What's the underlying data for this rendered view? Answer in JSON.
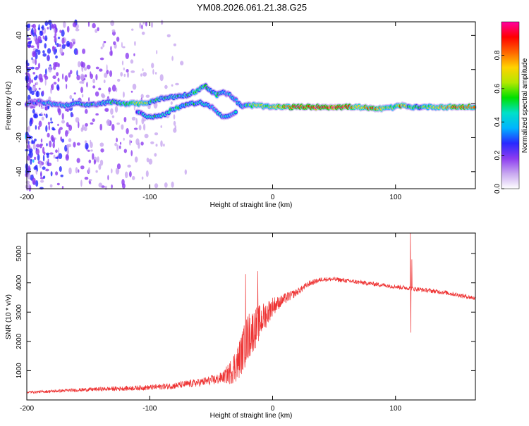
{
  "chart_data": [
    {
      "type": "heatmap",
      "title": "YM08.2026.061.21.38.G25",
      "xlabel": "Height of straight line (km)",
      "ylabel": "Frequency (Hz)",
      "xlim": [
        -200,
        165
      ],
      "ylim": [
        -50,
        48
      ],
      "xticks": [
        -200,
        -100,
        0,
        100
      ],
      "yticks": [
        40,
        20,
        0,
        -20,
        -40
      ],
      "colorbar": {
        "label": "Normalized spectral amplitude",
        "range": [
          0,
          1
        ],
        "ticks": [
          0.0,
          0.2,
          0.4,
          0.6,
          0.8
        ],
        "colors": [
          "#ffffff",
          "#c8a8f0",
          "#8c3cf0",
          "#2828ff",
          "#00b4ff",
          "#00e0c8",
          "#00e000",
          "#b4e800",
          "#ffd200",
          "#ff6400",
          "#ff0000",
          "#ff00a0"
        ]
      },
      "ridge": [
        {
          "x": -200,
          "f": 0,
          "a": 0.3
        },
        {
          "x": -190,
          "f": 1,
          "a": 0.35
        },
        {
          "x": -180,
          "f": 0,
          "a": 0.4
        },
        {
          "x": -170,
          "f": -1,
          "a": 0.38
        },
        {
          "x": -160,
          "f": 0,
          "a": 0.42
        },
        {
          "x": -150,
          "f": -1,
          "a": 0.45
        },
        {
          "x": -140,
          "f": 0,
          "a": 0.4
        },
        {
          "x": -130,
          "f": 1,
          "a": 0.5
        },
        {
          "x": -120,
          "f": 0,
          "a": 0.5
        },
        {
          "x": -110,
          "f": 0,
          "a": 0.6
        },
        {
          "x": -105,
          "f": 0,
          "a": 0.72
        },
        {
          "x": -100,
          "f": 1,
          "a": 0.5
        },
        {
          "x": -90,
          "f": 3,
          "a": 0.45
        },
        {
          "x": -80,
          "f": 4,
          "a": 0.45
        },
        {
          "x": -70,
          "f": 5,
          "a": 0.45
        },
        {
          "x": -60,
          "f": 8,
          "a": 0.5
        },
        {
          "x": -55,
          "f": 11,
          "a": 0.48
        },
        {
          "x": -50,
          "f": 7,
          "a": 0.45
        },
        {
          "x": -45,
          "f": 5,
          "a": 0.5
        },
        {
          "x": -40,
          "f": 7,
          "a": 0.45
        },
        {
          "x": -35,
          "f": 5,
          "a": 0.4
        },
        {
          "x": -30,
          "f": 2,
          "a": 0.4
        },
        {
          "x": -25,
          "f": -2,
          "a": 0.4
        },
        {
          "x": -20,
          "f": -1,
          "a": 0.5
        },
        {
          "x": -12,
          "f": -1,
          "a": 0.72
        },
        {
          "x": -5,
          "f": -2,
          "a": 0.6
        },
        {
          "x": 0,
          "f": -2,
          "a": 0.75
        },
        {
          "x": 20,
          "f": -2,
          "a": 0.9
        },
        {
          "x": 40,
          "f": -2,
          "a": 0.95
        },
        {
          "x": 60,
          "f": -2,
          "a": 0.95
        },
        {
          "x": 70,
          "f": -2,
          "a": 0.65
        },
        {
          "x": 80,
          "f": -3,
          "a": 0.9
        },
        {
          "x": 90,
          "f": -3,
          "a": 0.65
        },
        {
          "x": 100,
          "f": -2,
          "a": 0.6
        },
        {
          "x": 105,
          "f": -1,
          "a": 0.85
        },
        {
          "x": 110,
          "f": -2,
          "a": 0.6
        },
        {
          "x": 120,
          "f": -2,
          "a": 0.55
        },
        {
          "x": 130,
          "f": -2,
          "a": 0.6
        },
        {
          "x": 140,
          "f": -2,
          "a": 0.8
        },
        {
          "x": 155,
          "f": -2,
          "a": 0.85
        },
        {
          "x": 165,
          "f": -2,
          "a": 0.8
        }
      ],
      "lower_branch": [
        {
          "x": -110,
          "f": -5,
          "a": 0.35
        },
        {
          "x": -100,
          "f": -8,
          "a": 0.45
        },
        {
          "x": -90,
          "f": -7,
          "a": 0.45
        },
        {
          "x": -80,
          "f": -3,
          "a": 0.5
        },
        {
          "x": -70,
          "f": -1,
          "a": 0.45
        },
        {
          "x": -60,
          "f": 1,
          "a": 0.45
        },
        {
          "x": -50,
          "f": -2,
          "a": 0.4
        },
        {
          "x": -40,
          "f": -8,
          "a": 0.4
        },
        {
          "x": -30,
          "f": -5,
          "a": 0.4
        }
      ],
      "noise_region": [
        -200,
        -70
      ]
    },
    {
      "type": "line",
      "xlabel": "Height of straight line (km)",
      "ylabel": "SNR (10 * v/v)",
      "xlim": [
        -200,
        165
      ],
      "ylim": [
        0,
        5700
      ],
      "xticks": [
        -200,
        -100,
        0,
        100
      ],
      "yticks": [
        1000,
        2000,
        3000,
        4000,
        5000
      ],
      "color": "#ee3333",
      "trend": [
        [
          -200,
          250
        ],
        [
          -180,
          280
        ],
        [
          -160,
          320
        ],
        [
          -140,
          350
        ],
        [
          -120,
          370
        ],
        [
          -100,
          400
        ],
        [
          -80,
          450
        ],
        [
          -60,
          550
        ],
        [
          -45,
          650
        ],
        [
          -35,
          800
        ],
        [
          -28,
          1100
        ],
        [
          -24,
          1500
        ],
        [
          -20,
          1900
        ],
        [
          -15,
          2200
        ],
        [
          -10,
          2500
        ],
        [
          -5,
          2800
        ],
        [
          0,
          3100
        ],
        [
          10,
          3400
        ],
        [
          20,
          3650
        ],
        [
          30,
          3950
        ],
        [
          40,
          4100
        ],
        [
          50,
          4100
        ],
        [
          60,
          4050
        ],
        [
          80,
          3950
        ],
        [
          100,
          3850
        ],
        [
          110,
          3800
        ],
        [
          120,
          3750
        ],
        [
          140,
          3650
        ],
        [
          165,
          3450
        ]
      ],
      "noise_amplitude": [
        [
          -200,
          80
        ],
        [
          -160,
          120
        ],
        [
          -100,
          180
        ],
        [
          -60,
          280
        ],
        [
          -40,
          400
        ],
        [
          -30,
          1200
        ],
        [
          -20,
          1700
        ],
        [
          -12,
          1300
        ],
        [
          -5,
          900
        ],
        [
          5,
          450
        ],
        [
          20,
          250
        ],
        [
          40,
          150
        ],
        [
          165,
          150
        ]
      ],
      "spikes": [
        {
          "x": 112,
          "y": 5700
        },
        {
          "x": 112.4,
          "y": 2300
        },
        {
          "x": 113.2,
          "y": 4800
        },
        {
          "x": -22,
          "y": 4300
        },
        {
          "x": -12,
          "y": 4400
        }
      ]
    }
  ]
}
